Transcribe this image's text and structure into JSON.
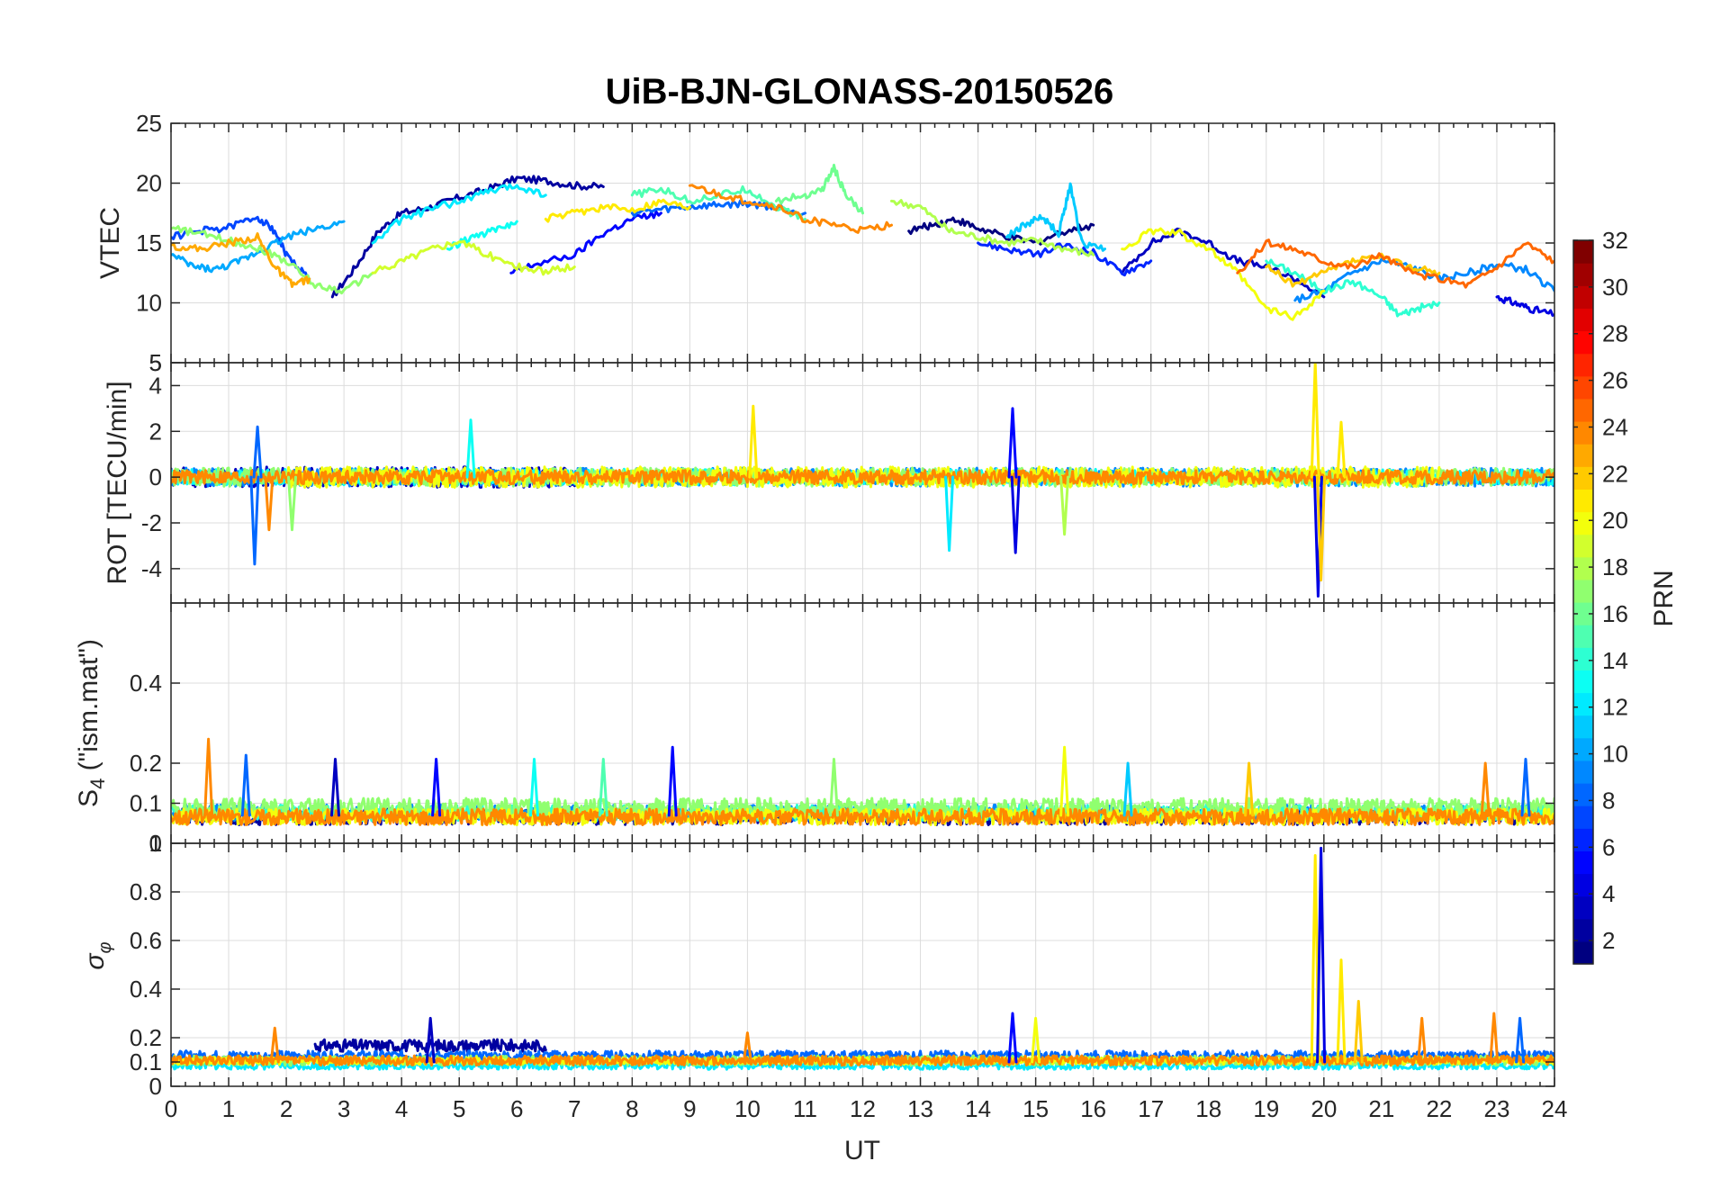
{
  "chart_data": {
    "type": "line",
    "title": "UiB-BJN-GLONASS-20150526",
    "xlabel": "UT",
    "xlim": [
      0,
      24
    ],
    "x_ticks": [
      "0",
      "1",
      "2",
      "3",
      "4",
      "5",
      "6",
      "7",
      "8",
      "9",
      "10",
      "11",
      "12",
      "13",
      "14",
      "15",
      "16",
      "17",
      "18",
      "19",
      "20",
      "21",
      "22",
      "23",
      "24"
    ],
    "colormap": "jet",
    "colorbar": {
      "label": "PRN",
      "range": [
        1,
        32
      ],
      "ticks": [
        "2",
        "4",
        "6",
        "8",
        "10",
        "12",
        "14",
        "16",
        "18",
        "20",
        "22",
        "24",
        "26",
        "28",
        "30",
        "32"
      ],
      "levels": 32
    },
    "panels": [
      {
        "id": "vtec",
        "ylabel": "VTEC",
        "ylim": [
          5,
          25
        ],
        "y_ticks": [
          5,
          10,
          15,
          20,
          25
        ],
        "y_tick_labels": [
          "5",
          "10",
          "15",
          "20",
          "25"
        ],
        "series": [
          {
            "prn": 1,
            "x": [
              12.8,
              13.2,
              13.6,
              14.0,
              14.5,
              15.0,
              15.5,
              16.0
            ],
            "y": [
              16.0,
              16.5,
              17.0,
              16.2,
              15.5,
              15.0,
              16.0,
              16.5
            ]
          },
          {
            "prn": 2,
            "x": [
              2.8,
              3.2,
              3.6,
              4.0,
              4.5,
              5.0,
              5.5,
              6.0,
              6.5,
              7.0,
              7.5
            ],
            "y": [
              10.5,
              13.0,
              16.0,
              17.5,
              18.0,
              18.8,
              19.5,
              20.4,
              20.2,
              19.8,
              19.7
            ]
          },
          {
            "prn": 3,
            "x": [
              16.5,
              17.0,
              17.5,
              18.0,
              18.5,
              19.0,
              19.5,
              20.0
            ],
            "y": [
              12.5,
              15.0,
              16.0,
              15.0,
              13.5,
              13.0,
              12.0,
              10.5
            ]
          },
          {
            "prn": 4,
            "x": [
              23.0,
              23.3,
              23.6,
              24.0
            ],
            "y": [
              10.5,
              10.0,
              9.5,
              9.0
            ]
          },
          {
            "prn": 5,
            "x": [
              5.9,
              6.3,
              7.0,
              7.5,
              8.0,
              8.5
            ],
            "y": [
              12.5,
              13.2,
              14.0,
              15.8,
              17.0,
              17.5
            ]
          },
          {
            "prn": 6,
            "x": [
              14.0,
              14.5,
              15.0,
              15.5,
              16.0,
              16.5,
              17.0
            ],
            "y": [
              15.0,
              14.5,
              14.0,
              14.8,
              14.2,
              12.5,
              13.5
            ]
          },
          {
            "prn": 7,
            "x": [
              0.0,
              0.5,
              1.0,
              1.5,
              1.8,
              2.0,
              2.4
            ],
            "y": [
              15.5,
              16.0,
              16.3,
              17.2,
              16.0,
              14.0,
              12.0
            ]
          },
          {
            "prn": 8,
            "x": [
              8.0,
              8.5,
              9.0,
              9.5,
              10.0,
              10.5,
              11.0
            ],
            "y": [
              17.5,
              17.8,
              18.0,
              18.2,
              18.3,
              18.0,
              17.5
            ]
          },
          {
            "prn": 9,
            "x": [
              19.5,
              20.0,
              20.5,
              21.0,
              21.5,
              22.0,
              22.5,
              23.0,
              23.5,
              24.0
            ],
            "y": [
              10.2,
              11.0,
              12.5,
              13.5,
              13.0,
              12.0,
              12.5,
              13.2,
              12.8,
              11.0
            ]
          },
          {
            "prn": 10,
            "x": [
              0.0,
              0.4,
              0.8,
              1.2,
              1.6,
              2.0,
              2.5,
              3.0
            ],
            "y": [
              14.0,
              13.0,
              12.8,
              13.5,
              14.5,
              15.5,
              16.2,
              16.8
            ]
          },
          {
            "prn": 11,
            "x": [
              14.5,
              14.8,
              15.1,
              15.4,
              15.6,
              15.8,
              16.2
            ],
            "y": [
              15.5,
              16.5,
              17.2,
              15.8,
              19.8,
              15.0,
              14.5
            ]
          },
          {
            "prn": 12,
            "x": [
              3.5,
              4.0,
              4.5,
              5.0,
              5.5,
              6.0,
              6.5
            ],
            "y": [
              15.0,
              17.0,
              17.8,
              18.5,
              19.3,
              19.8,
              19.0
            ]
          },
          {
            "prn": 13,
            "x": [
              4.8,
              5.2,
              5.6,
              6.0
            ],
            "y": [
              14.5,
              15.5,
              16.0,
              16.8
            ]
          },
          {
            "prn": 14,
            "x": [
              19.0,
              19.5,
              20.0,
              20.5,
              21.0,
              21.3,
              21.6,
              22.0
            ],
            "y": [
              13.5,
              12.5,
              11.0,
              11.8,
              10.5,
              9.0,
              9.5,
              10.0
            ]
          },
          {
            "prn": 15,
            "x": [
              8.0,
              8.5,
              9.0,
              9.5,
              10.0,
              10.5,
              11.0
            ],
            "y": [
              19.0,
              19.5,
              18.5,
              19.0,
              19.5,
              18.0,
              17.0
            ]
          },
          {
            "prn": 16,
            "x": [
              10.5,
              11.0,
              11.3,
              11.5,
              11.7,
              12.0
            ],
            "y": [
              18.5,
              19.0,
              19.5,
              21.3,
              19.0,
              17.5
            ]
          },
          {
            "prn": 17,
            "x": [
              0.0,
              0.5,
              1.0,
              1.5,
              2.0,
              2.5,
              3.0,
              3.5
            ],
            "y": [
              16.2,
              15.8,
              15.2,
              14.6,
              13.5,
              11.5,
              11.0,
              12.5
            ]
          },
          {
            "prn": 18,
            "x": [
              12.5,
              13.0,
              13.5,
              14.0,
              14.5,
              15.0,
              15.5,
              16.0
            ],
            "y": [
              18.5,
              18.0,
              16.0,
              15.5,
              15.0,
              15.2,
              14.5,
              14.0
            ]
          },
          {
            "prn": 19,
            "x": [
              3.5,
              4.0,
              4.5,
              5.0,
              5.5,
              6.0,
              6.5,
              7.0
            ],
            "y": [
              12.5,
              13.5,
              14.5,
              15.2,
              14.0,
              13.0,
              12.6,
              13.0
            ]
          },
          {
            "prn": 20,
            "x": [
              16.5,
              17.0,
              17.5,
              18.0,
              18.5,
              19.0,
              19.5,
              20.0
            ],
            "y": [
              14.5,
              16.0,
              15.8,
              14.5,
              12.5,
              9.5,
              8.8,
              11.0
            ]
          },
          {
            "prn": 21,
            "x": [
              6.5,
              7.0,
              7.5,
              8.0,
              8.5,
              9.0
            ],
            "y": [
              17.0,
              17.5,
              18.0,
              17.8,
              18.5,
              18.0
            ]
          },
          {
            "prn": 22,
            "x": [
              19.0,
              19.5,
              20.0,
              20.5,
              21.0,
              21.5,
              22.0
            ],
            "y": [
              13.0,
              11.5,
              12.5,
              13.5,
              13.8,
              13.0,
              12.5
            ]
          },
          {
            "prn": 23,
            "x": [
              0.0,
              0.5,
              1.0,
              1.5,
              1.8,
              2.1,
              2.4
            ],
            "y": [
              14.8,
              14.5,
              15.0,
              15.5,
              13.0,
              11.5,
              12.0
            ]
          },
          {
            "prn": 24,
            "x": [
              9.0,
              9.5,
              10.0,
              10.5,
              11.0,
              11.5,
              12.0,
              12.5
            ],
            "y": [
              19.8,
              19.0,
              18.5,
              18.0,
              17.0,
              16.5,
              16.0,
              16.5
            ]
          },
          {
            "prn": 25,
            "x": [
              18.5,
              19.0,
              19.5,
              20.0,
              20.5,
              21.0,
              21.5,
              22.0,
              22.5,
              23.0,
              23.5,
              24.0
            ],
            "y": [
              12.5,
              15.0,
              14.5,
              13.5,
              13.0,
              14.0,
              12.5,
              12.0,
              11.5,
              13.0,
              15.0,
              13.5
            ]
          }
        ]
      },
      {
        "id": "rot",
        "ylabel": "ROT [TECU/min]",
        "ylim": [
          -5.5,
          5
        ],
        "y_ticks": [
          -4,
          -2,
          0,
          2,
          4
        ],
        "y_tick_labels": [
          "-4",
          "-2",
          "0",
          "2",
          "4"
        ],
        "extra_top_label": "5",
        "noise": [
          {
            "prn": 3,
            "x0": 0.0,
            "x1": 7.0,
            "amp": 0.45,
            "seed": 11
          },
          {
            "prn": 9,
            "x0": 0.0,
            "x1": 24.0,
            "amp": 0.4,
            "seed": 12
          },
          {
            "prn": 13,
            "x0": 0.0,
            "x1": 24.0,
            "amp": 0.35,
            "seed": 13
          },
          {
            "prn": 17,
            "x0": 0.0,
            "x1": 24.0,
            "amp": 0.4,
            "seed": 14
          },
          {
            "prn": 20,
            "x0": 2.0,
            "x1": 22.0,
            "amp": 0.45,
            "seed": 15
          },
          {
            "prn": 24,
            "x0": 0.0,
            "x1": 24.0,
            "amp": 0.3,
            "seed": 16
          }
        ],
        "spikes": [
          {
            "prn": 8,
            "x": 1.45,
            "y": -3.8
          },
          {
            "prn": 8,
            "x": 1.5,
            "y": 2.2
          },
          {
            "prn": 24,
            "x": 1.7,
            "y": -2.3
          },
          {
            "prn": 17,
            "x": 2.1,
            "y": -2.3
          },
          {
            "prn": 13,
            "x": 5.2,
            "y": 2.5
          },
          {
            "prn": 21,
            "x": 10.1,
            "y": 3.1
          },
          {
            "prn": 12,
            "x": 13.5,
            "y": -3.2
          },
          {
            "prn": 5,
            "x": 14.6,
            "y": 3.0
          },
          {
            "prn": 4,
            "x": 14.65,
            "y": -3.3
          },
          {
            "prn": 18,
            "x": 15.5,
            "y": -2.5
          },
          {
            "prn": 21,
            "x": 19.85,
            "y": 5.0
          },
          {
            "prn": 4,
            "x": 19.9,
            "y": -5.2
          },
          {
            "prn": 22,
            "x": 19.95,
            "y": -4.5
          },
          {
            "prn": 21,
            "x": 20.3,
            "y": 2.4
          }
        ]
      },
      {
        "id": "s4",
        "ylabel_main": "S",
        "ylabel_sub": "4",
        "ylabel_rest": " (\"ism.mat\")",
        "ylim": [
          0,
          0.6
        ],
        "y_ticks": [
          0,
          0.1,
          0.2,
          0.4
        ],
        "y_tick_labels": [
          "0",
          "0.1",
          "0.2",
          "0.4"
        ],
        "extra_bottom_label": "1",
        "noise": [
          {
            "prn": 2,
            "x0": 0.0,
            "x1": 24.0,
            "amp": 0.04,
            "base": 0.06,
            "seed": 21
          },
          {
            "prn": 9,
            "x0": 0.0,
            "x1": 24.0,
            "amp": 0.04,
            "base": 0.07,
            "seed": 22
          },
          {
            "prn": 14,
            "x0": 0.0,
            "x1": 24.0,
            "amp": 0.04,
            "base": 0.07,
            "seed": 23
          },
          {
            "prn": 17,
            "x0": 0.0,
            "x1": 24.0,
            "amp": 0.05,
            "base": 0.08,
            "seed": 24
          },
          {
            "prn": 20,
            "x0": 0.0,
            "x1": 24.0,
            "amp": 0.04,
            "base": 0.06,
            "seed": 25
          },
          {
            "prn": 24,
            "x0": 0.0,
            "x1": 24.0,
            "amp": 0.04,
            "base": 0.06,
            "seed": 26
          }
        ],
        "spikes": [
          {
            "prn": 24,
            "x": 0.65,
            "y": 0.26
          },
          {
            "prn": 8,
            "x": 1.3,
            "y": 0.22
          },
          {
            "prn": 3,
            "x": 2.85,
            "y": 0.21
          },
          {
            "prn": 5,
            "x": 4.6,
            "y": 0.21
          },
          {
            "prn": 13,
            "x": 6.3,
            "y": 0.21
          },
          {
            "prn": 15,
            "x": 7.5,
            "y": 0.21
          },
          {
            "prn": 5,
            "x": 8.7,
            "y": 0.24
          },
          {
            "prn": 17,
            "x": 11.5,
            "y": 0.21
          },
          {
            "prn": 20,
            "x": 15.5,
            "y": 0.24
          },
          {
            "prn": 11,
            "x": 16.6,
            "y": 0.2
          },
          {
            "prn": 22,
            "x": 18.7,
            "y": 0.2
          },
          {
            "prn": 24,
            "x": 22.8,
            "y": 0.2
          },
          {
            "prn": 8,
            "x": 23.5,
            "y": 0.21
          }
        ]
      },
      {
        "id": "sigphi",
        "ylabel": "σφ",
        "ylim": [
          0,
          1
        ],
        "y_ticks": [
          0,
          0.1,
          0.2,
          0.4,
          0.6,
          0.8
        ],
        "y_tick_labels": [
          "0",
          "0.1",
          "0.2",
          "0.4",
          "0.6",
          "0.8"
        ],
        "top_label": "1",
        "noise": [
          {
            "prn": 2,
            "x0": 2.5,
            "x1": 6.5,
            "amp": 0.05,
            "base": 0.16,
            "seed": 31
          },
          {
            "prn": 8,
            "x0": 0.0,
            "x1": 24.0,
            "amp": 0.04,
            "base": 0.12,
            "seed": 32
          },
          {
            "prn": 12,
            "x0": 0.0,
            "x1": 24.0,
            "amp": 0.03,
            "base": 0.08,
            "seed": 33
          },
          {
            "prn": 17,
            "x0": 0.0,
            "x1": 24.0,
            "amp": 0.04,
            "base": 0.1,
            "seed": 34
          },
          {
            "prn": 20,
            "x0": 0.0,
            "x1": 24.0,
            "amp": 0.03,
            "base": 0.1,
            "seed": 35
          },
          {
            "prn": 24,
            "x0": 0.0,
            "x1": 24.0,
            "amp": 0.04,
            "base": 0.1,
            "seed": 36
          }
        ],
        "spikes": [
          {
            "prn": 24,
            "x": 1.8,
            "y": 0.24
          },
          {
            "prn": 3,
            "x": 4.5,
            "y": 0.28
          },
          {
            "prn": 24,
            "x": 10.0,
            "y": 0.22
          },
          {
            "prn": 5,
            "x": 14.6,
            "y": 0.3
          },
          {
            "prn": 20,
            "x": 15.0,
            "y": 0.28
          },
          {
            "prn": 21,
            "x": 19.85,
            "y": 0.95
          },
          {
            "prn": 4,
            "x": 19.95,
            "y": 0.98
          },
          {
            "prn": 21,
            "x": 20.3,
            "y": 0.52
          },
          {
            "prn": 22,
            "x": 20.6,
            "y": 0.35
          },
          {
            "prn": 24,
            "x": 21.7,
            "y": 0.28
          },
          {
            "prn": 24,
            "x": 22.95,
            "y": 0.3
          },
          {
            "prn": 8,
            "x": 23.4,
            "y": 0.28
          }
        ]
      }
    ]
  }
}
